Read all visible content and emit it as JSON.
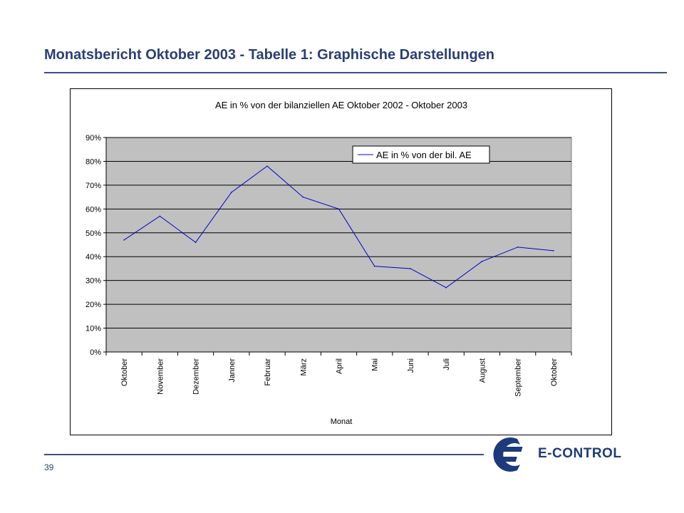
{
  "page": {
    "title": "Monatsbericht Oktober 2003 - Tabelle 1: Graphische Darstellungen",
    "page_number": "39",
    "logo_text": "E-CONTROL"
  },
  "chart_data": {
    "type": "line",
    "title": "AE in % von der bilanziellen AE Oktober 2002 - Oktober 2003",
    "xlabel": "Monat",
    "ylabel": "",
    "categories": [
      "Oktober",
      "November",
      "Dezember",
      "Janner",
      "Februar",
      "März",
      "April",
      "Mai",
      "Juni",
      "Juli",
      "August",
      "September",
      "Oktober"
    ],
    "series": [
      {
        "name": "AE in % von der bil. AE",
        "values": [
          47,
          57,
          46,
          67,
          78,
          65,
          60,
          36,
          35,
          27,
          38,
          44,
          42.5
        ],
        "color": "#0000cc"
      }
    ],
    "ylim": [
      0,
      90
    ],
    "yticks": [
      "0%",
      "10%",
      "20%",
      "30%",
      "40%",
      "50%",
      "60%",
      "70%",
      "80%",
      "90%"
    ],
    "grid": true,
    "plot_background": "#c0c0c0",
    "legend": "top-right"
  },
  "colors": {
    "title": "#2a3f73",
    "rule": "#3c4f80",
    "logo": "#1d3a7a"
  }
}
